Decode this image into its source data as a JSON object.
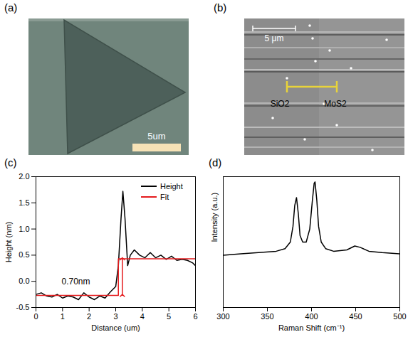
{
  "panels": [
    {
      "letter": "(a)",
      "type": "image",
      "scale_bar_label": "5um"
    },
    {
      "letter": "(b)",
      "type": "image",
      "scale_bar_label": "5 μm",
      "labels": [
        "SiO2",
        "MoS2"
      ]
    }
  ],
  "chart_data": [
    {
      "letter": "(c)",
      "type": "line",
      "x_label": "Distance (um)",
      "y_label": "Height (nm)",
      "xlim": [
        0,
        6
      ],
      "xticks": [
        0,
        1,
        2,
        3,
        4,
        5,
        6
      ],
      "ylim": [
        -0.5,
        2.0
      ],
      "yticks": [
        -0.5,
        {
          "value": 0,
          "label": "0.0"
        },
        0.5,
        {
          "value": 1,
          "label": "1.0"
        },
        1.5,
        {
          "value": 2,
          "label": "2.0"
        }
      ],
      "legend": "upper right",
      "series": [
        {
          "name": "Height",
          "color": "#000000",
          "x": [
            0,
            0.2,
            0.4,
            0.6,
            0.8,
            1.0,
            1.2,
            1.4,
            1.6,
            1.8,
            2.0,
            2.2,
            2.4,
            2.6,
            2.8,
            3.0,
            3.1,
            3.2,
            3.27,
            3.35,
            3.45,
            3.55,
            3.7,
            3.9,
            4.1,
            4.3,
            4.5,
            4.7,
            4.9,
            5.1,
            5.3,
            5.5,
            5.7,
            5.9,
            6.0
          ],
          "values": [
            -0.25,
            -0.22,
            -0.28,
            -0.3,
            -0.25,
            -0.32,
            -0.28,
            -0.3,
            -0.35,
            -0.22,
            -0.3,
            -0.35,
            -0.28,
            -0.32,
            -0.2,
            -0.1,
            0.3,
            1.2,
            1.72,
            1.2,
            0.3,
            0.5,
            0.6,
            0.5,
            0.45,
            0.55,
            0.45,
            0.5,
            0.42,
            0.48,
            0.4,
            0.42,
            0.4,
            0.35,
            0.3
          ]
        },
        {
          "name": "Fit",
          "color": "#e41a1c",
          "x": [
            0,
            3.1,
            3.1,
            6
          ],
          "values": [
            -0.27,
            -0.27,
            0.43,
            0.43
          ]
        }
      ],
      "annotations": [
        {
          "text": "0.70nm",
          "x": 1.5,
          "y": 0.0,
          "color": "#e41a1c",
          "arrow": {
            "x": 3.25,
            "y1": -0.27,
            "y2": 0.43
          }
        }
      ]
    },
    {
      "letter": "(d)",
      "type": "line",
      "x_label": "Raman Shift (cm⁻¹)",
      "y_label": "Intensity (a.u.)",
      "xlim": [
        300,
        500
      ],
      "xticks": [
        300,
        350,
        400,
        450,
        500
      ],
      "ylim": [
        0,
        1
      ],
      "tick_labels": "x",
      "series": [
        {
          "color": "#000000",
          "x": [
            300,
            320,
            340,
            360,
            370,
            376,
            379,
            381,
            383,
            385,
            387,
            390,
            394,
            398,
            401,
            403,
            404,
            406,
            408,
            411,
            416,
            425,
            440,
            449,
            455,
            465,
            480,
            500
          ],
          "values": [
            0.4,
            0.41,
            0.42,
            0.43,
            0.45,
            0.5,
            0.62,
            0.78,
            0.84,
            0.72,
            0.55,
            0.5,
            0.5,
            0.6,
            0.82,
            0.95,
            0.96,
            0.82,
            0.62,
            0.5,
            0.45,
            0.43,
            0.44,
            0.47,
            0.46,
            0.43,
            0.42,
            0.41
          ]
        }
      ]
    }
  ]
}
